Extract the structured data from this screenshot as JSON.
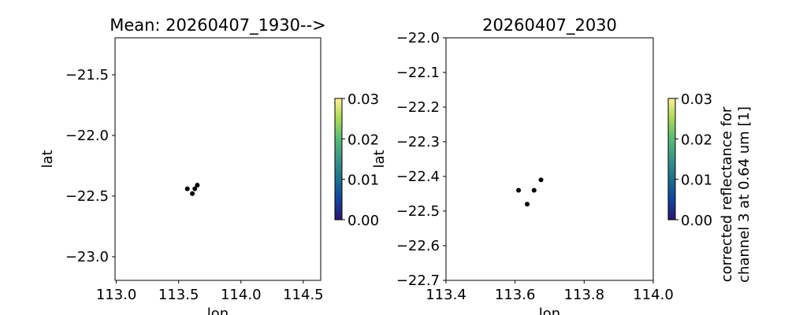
{
  "chart_data": [
    {
      "type": "scatter",
      "title": "Mean: 20260407_1930-->",
      "xlabel": "lon",
      "ylabel": "lat",
      "xlim": [
        112.99,
        114.64
      ],
      "ylim": [
        -23.195,
        -21.195
      ],
      "xticks": [
        113.0,
        113.5,
        114.0,
        114.5
      ],
      "xtick_labels": [
        "113.0",
        "113.5",
        "114.0",
        "114.5"
      ],
      "yticks": [
        -21.5,
        -22.0,
        -22.5,
        -23.0
      ],
      "ytick_labels": [
        "−21.5",
        "−22.0",
        "−22.5",
        "−23.0"
      ],
      "grid": false,
      "points": [
        {
          "x": 113.57,
          "y": -22.44
        },
        {
          "x": 113.61,
          "y": -22.48
        },
        {
          "x": 113.63,
          "y": -22.44
        },
        {
          "x": 113.65,
          "y": -22.41
        }
      ],
      "point_color": "#000000",
      "colorbar": {
        "label": "",
        "range": [
          0.0,
          0.03
        ],
        "ticks": [
          0.0,
          0.01,
          0.02,
          0.03
        ],
        "tick_labels": [
          "0.00",
          "0.01",
          "0.02",
          "0.03"
        ],
        "colormap": [
          "#2a186c",
          "#14439c",
          "#206e8b",
          "#3c9387",
          "#5ab978",
          "#aad85c",
          "#fdef9a"
        ]
      }
    },
    {
      "type": "scatter",
      "title": "20260407_2030",
      "xlabel": "lon",
      "ylabel": "lat",
      "xlim": [
        113.4,
        114.0
      ],
      "ylim": [
        -22.7,
        -22.0
      ],
      "xticks": [
        113.4,
        113.6,
        113.8,
        114.0
      ],
      "xtick_labels": [
        "113.4",
        "113.6",
        "113.8",
        "114.0"
      ],
      "yticks": [
        -22.0,
        -22.1,
        -22.2,
        -22.3,
        -22.4,
        -22.5,
        -22.6,
        -22.7
      ],
      "ytick_labels": [
        "−22.0",
        "−22.1",
        "−22.2",
        "−22.3",
        "−22.4",
        "−22.5",
        "−22.6",
        "−22.7"
      ],
      "grid": false,
      "points": [
        {
          "x": 113.61,
          "y": -22.44
        },
        {
          "x": 113.635,
          "y": -22.48
        },
        {
          "x": 113.655,
          "y": -22.44
        },
        {
          "x": 113.675,
          "y": -22.41
        }
      ],
      "point_color": "#000000",
      "colorbar": {
        "label_line1": "corrected reflectance for",
        "label_line2": "channel 3 at 0.64 um [1]",
        "range": [
          0.0,
          0.03
        ],
        "ticks": [
          0.0,
          0.01,
          0.02,
          0.03
        ],
        "tick_labels": [
          "0.00",
          "0.01",
          "0.02",
          "0.03"
        ],
        "colormap": [
          "#2a186c",
          "#14439c",
          "#206e8b",
          "#3c9387",
          "#5ab978",
          "#aad85c",
          "#fdef9a"
        ]
      }
    }
  ]
}
